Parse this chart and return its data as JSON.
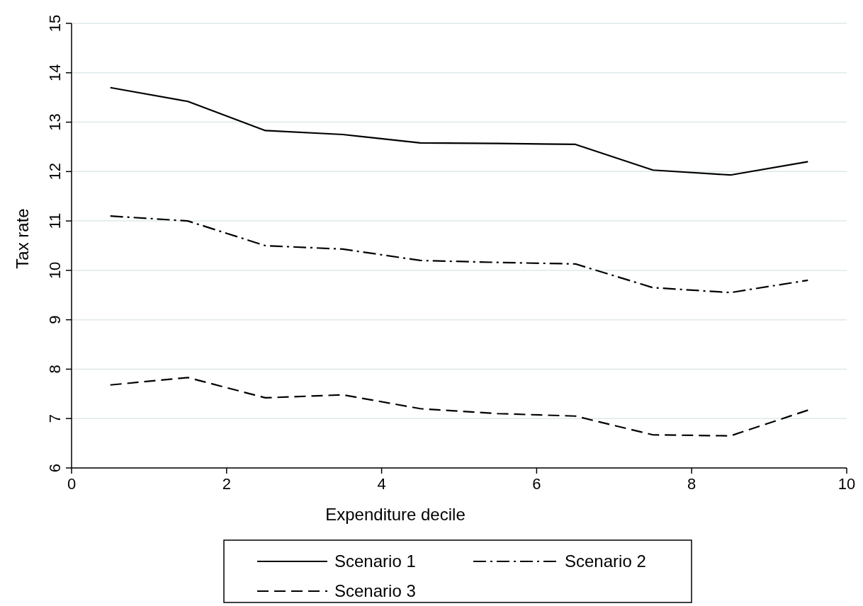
{
  "chart_data": {
    "type": "line",
    "xlabel": "Expenditure decile",
    "ylabel": "Tax rate",
    "x": [
      0.5,
      1.5,
      2.5,
      3.5,
      4.5,
      5.5,
      6.5,
      7.5,
      8.5,
      9.5
    ],
    "series": [
      {
        "name": "Scenario 1",
        "color": "#000000",
        "line_style": "solid",
        "values": [
          13.7,
          13.42,
          12.83,
          12.75,
          12.58,
          12.57,
          12.55,
          12.03,
          11.93,
          12.2
        ]
      },
      {
        "name": "Scenario 2",
        "color": "#000000",
        "line_style": "dashdot",
        "values": [
          11.1,
          11.0,
          10.5,
          10.43,
          10.2,
          10.16,
          10.13,
          9.65,
          9.55,
          9.8
        ]
      },
      {
        "name": "Scenario 3",
        "color": "#000000",
        "line_style": "dashed",
        "values": [
          7.68,
          7.83,
          7.42,
          7.48,
          7.2,
          7.1,
          7.05,
          6.67,
          6.65,
          7.17
        ]
      }
    ],
    "xlim": [
      0,
      10
    ],
    "xticks": [
      0,
      2,
      4,
      6,
      8,
      10
    ],
    "ylim": [
      6,
      15
    ],
    "yticks": [
      6,
      7,
      8,
      9,
      10,
      11,
      12,
      13,
      14,
      15
    ],
    "grid": "y",
    "legend": "bottom",
    "marker": "none"
  }
}
